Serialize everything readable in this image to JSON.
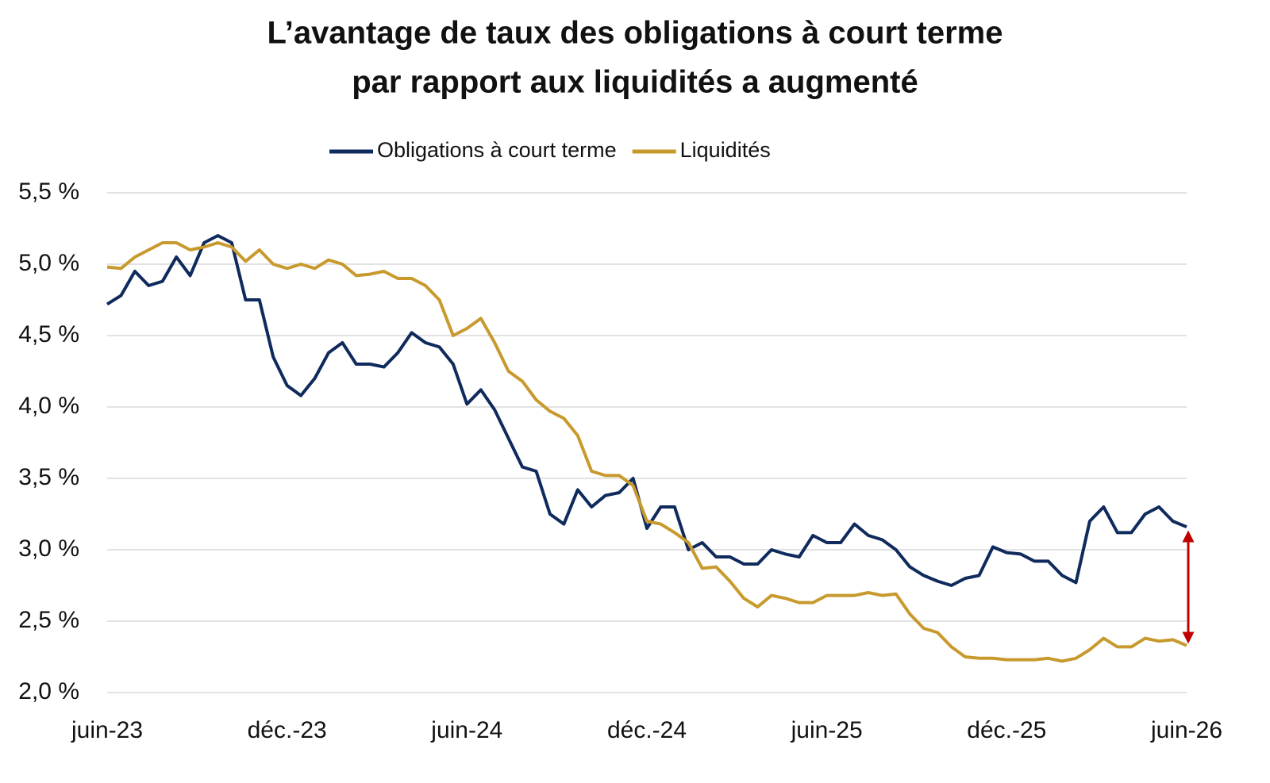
{
  "chart_data": {
    "type": "line",
    "title": [
      "L’avantage de taux des obligations à court terme",
      "par rapport aux liquidités a augmenté"
    ],
    "categories": [
      "juin-23",
      null,
      null,
      null,
      null,
      null,
      null,
      null,
      null,
      null,
      null,
      null,
      null,
      "déc.-23",
      null,
      null,
      null,
      null,
      null,
      null,
      null,
      null,
      null,
      null,
      null,
      null,
      "juin-24",
      null,
      null,
      null,
      null,
      null,
      null,
      null,
      null,
      null,
      null,
      null,
      null,
      "déc.-24",
      null,
      null,
      null,
      null,
      null,
      null,
      null,
      null,
      null,
      null,
      null,
      null,
      "juin-25",
      null,
      null,
      null,
      null,
      null,
      null,
      null,
      null,
      null,
      null,
      null,
      null,
      "déc.-25",
      null,
      null,
      null,
      null,
      null,
      null,
      null,
      null,
      null,
      null,
      null,
      null,
      "juin-26"
    ],
    "series": [
      {
        "name": "Obligations à court terme",
        "color": "#0f2a5c",
        "values": [
          4.72,
          4.78,
          4.95,
          4.85,
          4.88,
          5.05,
          4.92,
          5.15,
          5.2,
          5.15,
          4.75,
          4.75,
          4.35,
          4.15,
          4.08,
          4.2,
          4.38,
          4.45,
          4.3,
          4.3,
          4.28,
          4.38,
          4.52,
          4.45,
          4.42,
          4.3,
          4.02,
          4.12,
          3.98,
          3.78,
          3.58,
          3.55,
          3.25,
          3.18,
          3.42,
          3.3,
          3.38,
          3.4,
          3.5,
          3.15,
          3.3,
          3.3,
          3.0,
          3.05,
          2.95,
          2.95,
          2.9,
          2.9,
          3.0,
          2.97,
          2.95,
          3.1,
          3.05,
          3.05,
          3.18,
          3.1,
          3.07,
          3.0,
          2.88,
          2.82,
          2.78,
          2.75,
          2.8,
          2.82,
          3.02,
          2.98,
          2.97,
          2.92,
          2.92,
          2.82,
          2.77,
          3.2,
          3.3,
          3.12,
          3.12,
          3.25,
          3.3,
          3.2,
          3.16
        ]
      },
      {
        "name": "Liquidités",
        "color": "#c89a2e",
        "values": [
          4.98,
          4.97,
          5.05,
          5.1,
          5.15,
          5.15,
          5.1,
          5.12,
          5.15,
          5.12,
          5.02,
          5.1,
          5.0,
          4.97,
          5.0,
          4.97,
          5.03,
          5.0,
          4.92,
          4.93,
          4.95,
          4.9,
          4.9,
          4.85,
          4.75,
          4.5,
          4.55,
          4.62,
          4.45,
          4.25,
          4.18,
          4.05,
          3.97,
          3.92,
          3.8,
          3.55,
          3.52,
          3.52,
          3.45,
          3.2,
          3.18,
          3.12,
          3.05,
          2.87,
          2.88,
          2.78,
          2.66,
          2.6,
          2.68,
          2.66,
          2.63,
          2.63,
          2.68,
          2.68,
          2.68,
          2.7,
          2.68,
          2.69,
          2.55,
          2.45,
          2.42,
          2.32,
          2.25,
          2.24,
          2.24,
          2.23,
          2.23,
          2.23,
          2.24,
          2.22,
          2.24,
          2.3,
          2.38,
          2.32,
          2.32,
          2.38,
          2.36,
          2.37,
          2.33
        ]
      }
    ],
    "ylim": [
      2.0,
      5.5
    ],
    "yticks": [
      {
        "value": 2.0,
        "label": "2,0 %"
      },
      {
        "value": 2.5,
        "label": "2,5 %"
      },
      {
        "value": 3.0,
        "label": "3,0 %"
      },
      {
        "value": 3.5,
        "label": "3,5 %"
      },
      {
        "value": 4.0,
        "label": "4,0 %"
      },
      {
        "value": 4.5,
        "label": "4,5 %"
      },
      {
        "value": 5.0,
        "label": "5,0 %"
      },
      {
        "value": 5.5,
        "label": "5,5 %"
      }
    ],
    "grid": true,
    "legend": "top"
  }
}
